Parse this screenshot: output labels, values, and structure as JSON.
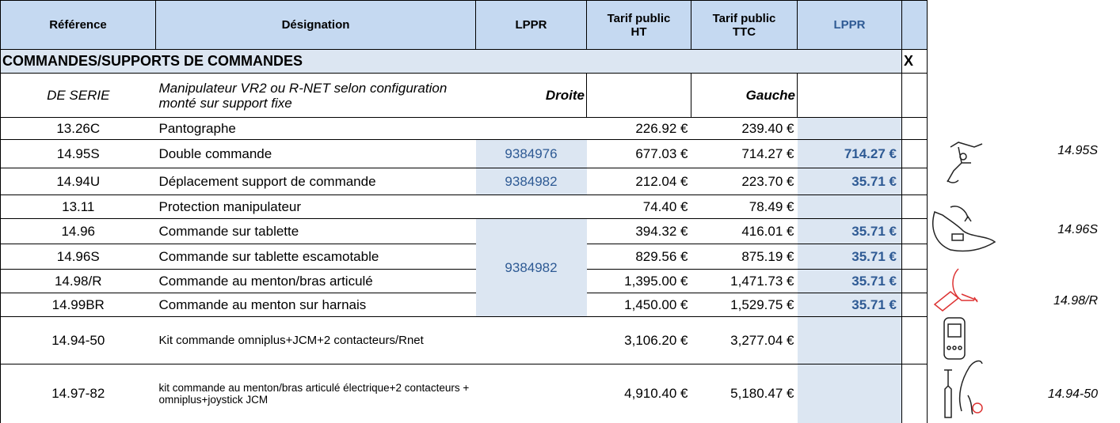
{
  "header": [
    "Référence",
    "Désignation",
    "LPPR",
    "Tarif public HT",
    "Tarif public TTC",
    "LPPR"
  ],
  "section": {
    "title": "COMMANDES/SUPPORTS DE COMMANDES",
    "mark": "X"
  },
  "serie": {
    "reference": "DE SERIE",
    "designation": "Manipulateur VR2 ou R-NET selon configuration monté sur support fixe",
    "right": "Droite",
    "left": "Gauche"
  },
  "rows": [
    {
      "reference": "13.26C",
      "designation": "Pantographe",
      "ht": "226.92 €",
      "ttc": "239.40 €"
    },
    {
      "reference": "14.95S",
      "designation": "Double commande",
      "lppr": "9384976",
      "ht": "677.03 €",
      "ttc": "714.27 €",
      "lppr_price": "714.27 €"
    },
    {
      "reference": "14.94U",
      "designation": "Déplacement support de commande",
      "lppr": "9384982",
      "ht": "212.04 €",
      "ttc": "223.70 €",
      "lppr_price": "35.71 €"
    },
    {
      "reference": "13.11",
      "designation": "Protection manipulateur",
      "ht": "74.40 €",
      "ttc": "78.49 €"
    },
    {
      "reference": "14.96",
      "designation": "Commande sur tablette",
      "lppr": "9384982",
      "ht": "394.32 €",
      "ttc": "416.01 €",
      "lppr_price": "35.71 €"
    },
    {
      "reference": "14.96S",
      "designation": "Commande sur tablette escamotable",
      "ht": "829.56 €",
      "ttc": "875.19 €",
      "lppr_price": "35.71 €"
    },
    {
      "reference": "14.98/R",
      "designation": "Commande au menton/bras articulé",
      "ht": "1,395.00 €",
      "ttc": "1,471.73 €",
      "lppr_price": "35.71 €"
    },
    {
      "reference": "14.99BR",
      "designation": "Commande au menton sur harnais",
      "ht": "1,450.00 €",
      "ttc": "1,529.75 €",
      "lppr_price": "35.71 €"
    },
    {
      "reference": "14.94-50",
      "designation": "Kit commande omniplus+JCM+2 contacteurs/Rnet",
      "ht": "3,106.20 €",
      "ttc": "3,277.04 €"
    },
    {
      "reference": "14.97-82",
      "designation": "kit commande au menton/bras articulé électrique+2 contacteurs + omniplus+joystick JCM",
      "ht": "4,910.40 €",
      "ttc": "5,180.47 €"
    }
  ],
  "images": [
    "14.95S",
    "14.96S",
    "14.98/R",
    "14.94-50"
  ]
}
